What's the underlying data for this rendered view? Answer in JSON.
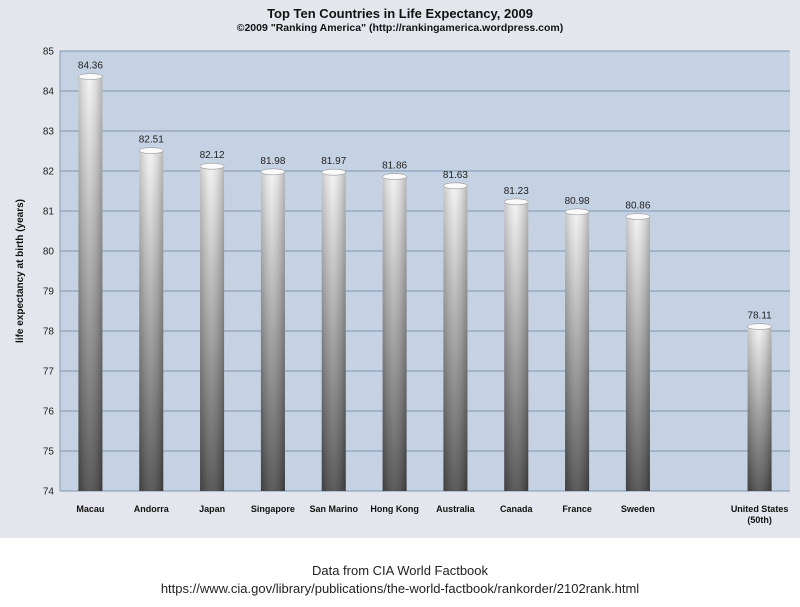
{
  "chart_data": {
    "type": "bar",
    "title": "Top Ten Countries in Life Expectancy, 2009",
    "subtitle": "©2009 \"Ranking America\" (http://rankingamerica.wordpress.com)",
    "ylabel": "life expectancy at birth (years)",
    "xlabel": "",
    "ylim": [
      74,
      85
    ],
    "yticks": [
      74,
      75,
      76,
      77,
      78,
      79,
      80,
      81,
      82,
      83,
      84,
      85
    ],
    "grid": true,
    "categories": [
      "Macau",
      "Andorra",
      "Japan",
      "Singapore",
      "San Marino",
      "Hong Kong",
      "Australia",
      "Canada",
      "France",
      "Sweden",
      "",
      "United States (50th)"
    ],
    "values": [
      84.36,
      82.51,
      82.12,
      81.98,
      81.97,
      81.86,
      81.63,
      81.23,
      80.98,
      80.86,
      null,
      78.11
    ],
    "labels": [
      "84.36",
      "82.51",
      "82.12",
      "81.98",
      "81.97",
      "81.86",
      "81.63",
      "81.23",
      "80.98",
      "80.86",
      "",
      "78.11"
    ]
  },
  "footer": {
    "line1": "Data from CIA World Factbook",
    "line2": "https://www.cia.gov/library/publications/the-world-factbook/rankorder/2102rank.html"
  },
  "colors": {
    "plot_background": "#c5d2e3",
    "gridline": "#7e95b4",
    "bar_light": "#f2f2f2",
    "bar_dark": "#4a4a4a"
  }
}
